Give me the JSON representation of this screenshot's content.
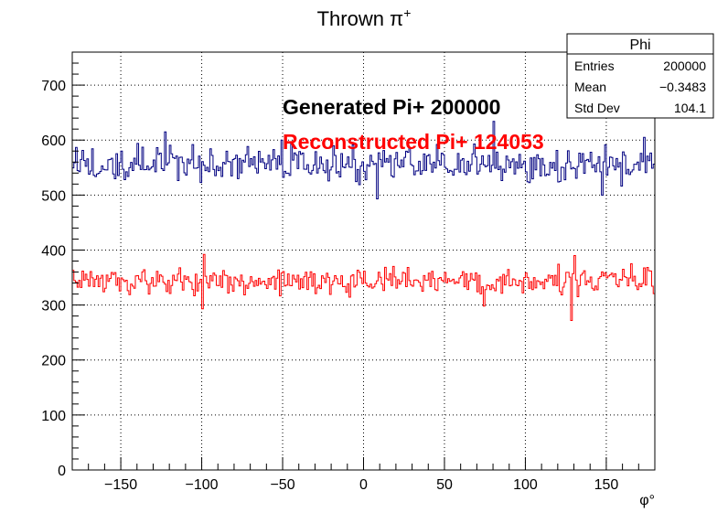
{
  "chart_data": {
    "type": "histogram",
    "title_main": "Thrown π",
    "title_sup": "+",
    "xlabel": "φ°",
    "ylabel": "",
    "xlim": [
      -180,
      180
    ],
    "ylim": [
      0,
      760
    ],
    "xticks": [
      -150,
      -100,
      -50,
      0,
      50,
      100,
      150
    ],
    "yticks": [
      0,
      100,
      200,
      300,
      400,
      500,
      600,
      700
    ],
    "grid": true,
    "bins": 360,
    "series": [
      {
        "color": "#000080",
        "level": 555,
        "ymin": 492,
        "ymax": 634,
        "peaks": [
          {
            "x": -123,
            "y": 615
          },
          {
            "x": -51,
            "y": 600
          },
          {
            "x": 8,
            "y": 493
          },
          {
            "x": 80,
            "y": 634
          },
          {
            "x": 147,
            "y": 500
          },
          {
            "x": 173,
            "y": 605
          }
        ]
      },
      {
        "color": "#ff0000",
        "level": 345,
        "ymin": 272,
        "ymax": 392,
        "peaks": [
          {
            "x": -100,
            "y": 293
          },
          {
            "x": -99,
            "y": 392
          },
          {
            "x": 74,
            "y": 298
          },
          {
            "x": 128,
            "y": 272
          },
          {
            "x": 130,
            "y": 390
          }
        ]
      }
    ],
    "annotations": [
      {
        "text": "Generated Pi+ 200000",
        "color": "#000000"
      },
      {
        "text": "Reconstructed Pi+ 124053",
        "color": "#ff0000"
      }
    ],
    "stats_box": {
      "title": "Phi",
      "rows": [
        {
          "label": "Entries",
          "value": "200000"
        },
        {
          "label": "Mean",
          "value": "−0.3483"
        },
        {
          "label": "Std Dev",
          "value": "104.1"
        }
      ]
    }
  }
}
